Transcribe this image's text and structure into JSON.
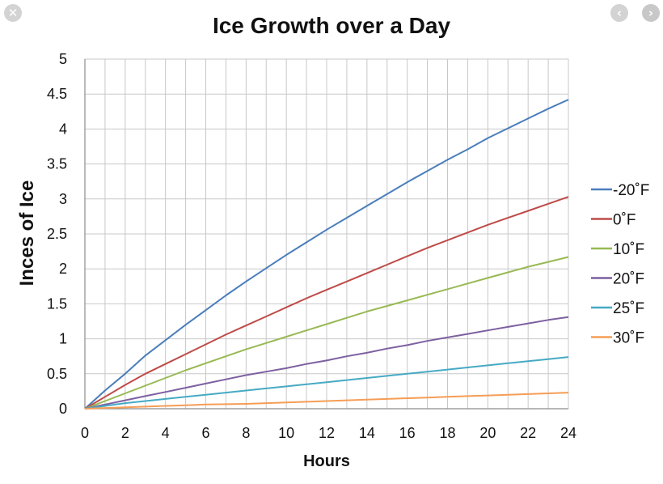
{
  "viewer": {
    "close_icon": "close-icon",
    "prev_icon": "chevron-left-icon",
    "next_icon": "chevron-right-icon",
    "close_glyph": "✕",
    "prev_glyph": "‹",
    "next_glyph": "›"
  },
  "chart_data": {
    "type": "line",
    "title": "Ice Growth over a Day",
    "xlabel": "Hours",
    "ylabel": "Inces of Ice",
    "xlim": [
      0,
      24
    ],
    "ylim": [
      0,
      5
    ],
    "x_ticks": [
      0,
      2,
      4,
      6,
      8,
      10,
      12,
      14,
      16,
      18,
      20,
      22,
      24
    ],
    "y_ticks": [
      "0",
      "0.5",
      "1",
      "1.5",
      "2",
      "2.5",
      "3",
      "3.5",
      "4",
      "4.5",
      "5"
    ],
    "grid": true,
    "legend_position": "right",
    "x": [
      0,
      1,
      2,
      3,
      4,
      5,
      6,
      7,
      8,
      9,
      10,
      11,
      12,
      13,
      14,
      15,
      16,
      17,
      18,
      19,
      20,
      21,
      22,
      23,
      24
    ],
    "series": [
      {
        "name": "-20˚F",
        "color": "#4a7ebb",
        "values": [
          0,
          0.26,
          0.5,
          0.76,
          0.98,
          1.2,
          1.41,
          1.62,
          1.82,
          2.01,
          2.2,
          2.38,
          2.56,
          2.73,
          2.9,
          3.07,
          3.24,
          3.4,
          3.56,
          3.71,
          3.87,
          4.01,
          4.15,
          4.29,
          4.42
        ]
      },
      {
        "name": "0˚F",
        "color": "#be4b48",
        "values": [
          0,
          0.17,
          0.34,
          0.5,
          0.64,
          0.78,
          0.92,
          1.06,
          1.19,
          1.32,
          1.45,
          1.58,
          1.7,
          1.82,
          1.94,
          2.06,
          2.18,
          2.3,
          2.41,
          2.52,
          2.63,
          2.73,
          2.83,
          2.93,
          3.03
        ]
      },
      {
        "name": "10˚F",
        "color": "#98b954",
        "values": [
          0,
          0.11,
          0.22,
          0.33,
          0.44,
          0.55,
          0.65,
          0.75,
          0.85,
          0.94,
          1.03,
          1.12,
          1.21,
          1.3,
          1.39,
          1.47,
          1.55,
          1.63,
          1.71,
          1.79,
          1.87,
          1.95,
          2.03,
          2.1,
          2.17
        ]
      },
      {
        "name": "20˚F",
        "color": "#7d60a0",
        "values": [
          0,
          0.06,
          0.12,
          0.18,
          0.24,
          0.3,
          0.36,
          0.42,
          0.48,
          0.53,
          0.58,
          0.64,
          0.69,
          0.75,
          0.8,
          0.86,
          0.91,
          0.97,
          1.02,
          1.07,
          1.12,
          1.17,
          1.22,
          1.27,
          1.31
        ]
      },
      {
        "name": "25˚F",
        "color": "#46aac4",
        "values": [
          0,
          0.04,
          0.08,
          0.11,
          0.14,
          0.17,
          0.2,
          0.23,
          0.26,
          0.29,
          0.32,
          0.35,
          0.38,
          0.41,
          0.44,
          0.47,
          0.5,
          0.53,
          0.56,
          0.59,
          0.62,
          0.65,
          0.68,
          0.71,
          0.74
        ]
      },
      {
        "name": "30˚F",
        "color": "#f59d56",
        "values": [
          0,
          0.01,
          0.02,
          0.03,
          0.04,
          0.05,
          0.06,
          0.065,
          0.07,
          0.08,
          0.09,
          0.1,
          0.11,
          0.12,
          0.13,
          0.14,
          0.15,
          0.16,
          0.17,
          0.18,
          0.19,
          0.2,
          0.21,
          0.22,
          0.23
        ]
      }
    ]
  }
}
